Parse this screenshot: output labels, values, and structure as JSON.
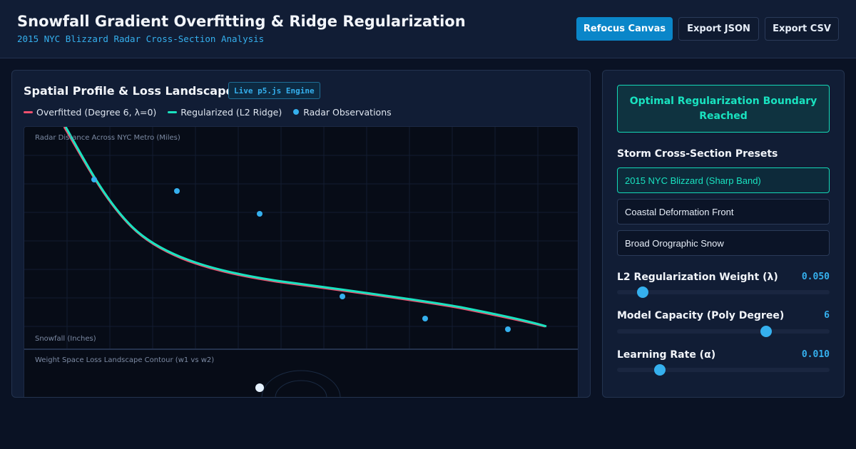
{
  "header": {
    "title": "Snowfall Gradient Overfitting & Ridge Regularization",
    "subtitle": "2015 NYC Blizzard Radar Cross-Section Analysis",
    "buttons": {
      "refocus": "Refocus Canvas",
      "export_json": "Export JSON",
      "export_csv": "Export CSV"
    }
  },
  "left_panel": {
    "title": "Spatial Profile & Loss Landscape",
    "engine_badge": "Live p5.js Engine",
    "legend": [
      {
        "label": "Overfitted (Degree 6, λ=0)",
        "color": "#f0506e",
        "icon": "line-swatch"
      },
      {
        "label": "Regularized (L2 Ridge)",
        "color": "#19e3c0",
        "icon": "line-swatch"
      },
      {
        "label": "Radar Observations",
        "color": "#35b0ee",
        "icon": "dot-swatch"
      }
    ],
    "profile_plot": {
      "x_label": "Radar Distance Across NYC Metro (Miles)",
      "y_label": "Snowfall (Inches)"
    },
    "contour_plot": {
      "label": "Weight Space Loss Landscape Contour (w1 vs w2)"
    }
  },
  "right_panel": {
    "status": "Optimal Regularization Boundary Reached",
    "presets_title": "Storm Cross-Section Presets",
    "presets": [
      {
        "label": "2015 NYC Blizzard (Sharp Band)",
        "active": true
      },
      {
        "label": "Coastal Deformation Front",
        "active": false
      },
      {
        "label": "Broad Orographic Snow",
        "active": false
      }
    ],
    "sliders": [
      {
        "label": "L2 Regularization Weight (λ)",
        "value": "0.050",
        "fraction": 0.12
      },
      {
        "label": "Model Capacity (Poly Degree)",
        "value": "6",
        "fraction": 0.7
      },
      {
        "label": "Learning Rate (α)",
        "value": "0.010",
        "fraction": 0.2
      }
    ]
  },
  "colors": {
    "accent": "#35b0ee",
    "teal": "#19e3c0",
    "overfit_red": "#f0506e",
    "primary_button": "#0a86c9"
  }
}
